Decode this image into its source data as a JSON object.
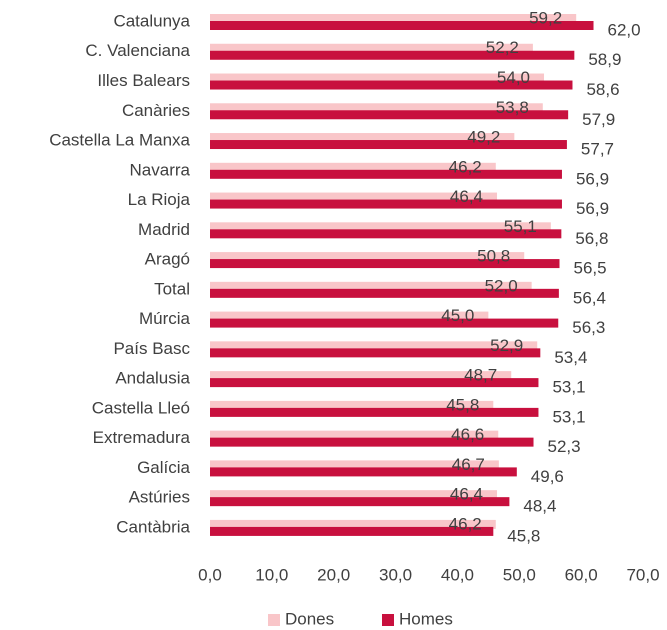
{
  "chart_data": {
    "type": "bar",
    "orientation": "horizontal",
    "categories": [
      "Catalunya",
      "C. Valenciana",
      "Illes Balears",
      "Canàries",
      "Castella La Manxa",
      "Navarra",
      "La Rioja",
      "Madrid",
      "Aragó",
      "Total",
      "Múrcia",
      "País Basc",
      "Andalusia",
      "Castella Lleó",
      "Extremadura",
      "Galícia",
      "Astúries",
      "Cantàbria"
    ],
    "series": [
      {
        "name": "Dones",
        "color": "#f9c6c9",
        "values": [
          59.2,
          52.2,
          54.0,
          53.8,
          49.2,
          46.2,
          46.4,
          55.1,
          50.8,
          52.0,
          45.0,
          52.9,
          48.7,
          45.8,
          46.6,
          46.7,
          46.4,
          46.2
        ],
        "value_labels": [
          "59,2",
          "52,2",
          "54,0",
          "53,8",
          "49,2",
          "46,2",
          "46,4",
          "55,1",
          "50,8",
          "52,0",
          "45,0",
          "52,9",
          "48,7",
          "45,8",
          "46,6",
          "46,7",
          "46,4",
          "46,2"
        ]
      },
      {
        "name": "Homes",
        "color": "#c8103e",
        "values": [
          62.0,
          58.9,
          58.6,
          57.9,
          57.7,
          56.9,
          56.9,
          56.8,
          56.5,
          56.4,
          56.3,
          53.4,
          53.1,
          53.1,
          52.3,
          49.6,
          48.4,
          45.8
        ],
        "value_labels": [
          "62,0",
          "58,9",
          "58,6",
          "57,9",
          "57,7",
          "56,9",
          "56,9",
          "56,8",
          "56,5",
          "56,4",
          "56,3",
          "53,4",
          "53,1",
          "53,1",
          "52,3",
          "49,6",
          "48,4",
          "45,8"
        ]
      }
    ],
    "xlim": [
      0,
      70
    ],
    "xticks": [
      {
        "value": 0,
        "label": "0,0"
      },
      {
        "value": 10,
        "label": "10,0"
      },
      {
        "value": 20,
        "label": "20,0"
      },
      {
        "value": 30,
        "label": "30,0"
      },
      {
        "value": 40,
        "label": "40,0"
      },
      {
        "value": 50,
        "label": "50,0"
      },
      {
        "value": 60,
        "label": "60,0"
      },
      {
        "value": 70,
        "label": "70,0"
      }
    ],
    "legend": "bottom"
  }
}
